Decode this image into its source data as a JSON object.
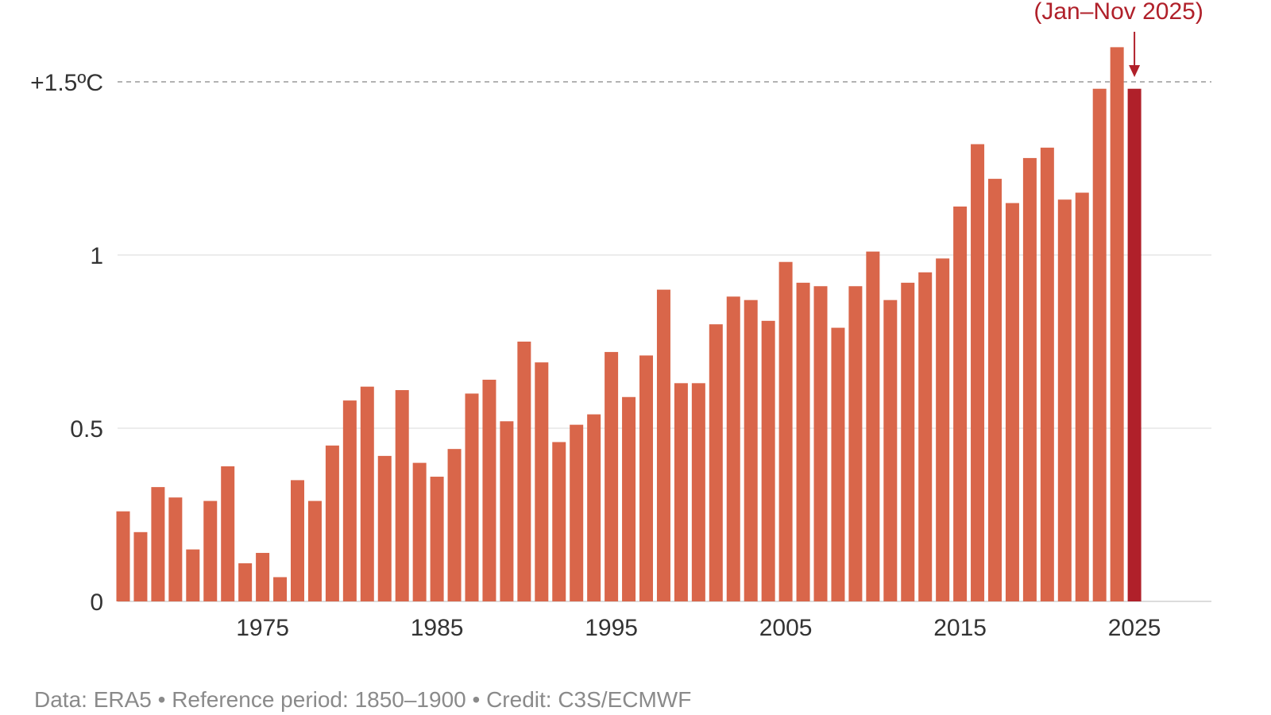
{
  "chart_data": {
    "type": "bar",
    "title": "",
    "xlabel": "",
    "ylabel": "",
    "ylim": [
      0,
      1.6
    ],
    "grid": true,
    "x": [
      1967,
      1968,
      1969,
      1970,
      1971,
      1972,
      1973,
      1974,
      1975,
      1976,
      1977,
      1978,
      1979,
      1980,
      1981,
      1982,
      1983,
      1984,
      1985,
      1986,
      1987,
      1988,
      1989,
      1990,
      1991,
      1992,
      1993,
      1994,
      1995,
      1996,
      1997,
      1998,
      1999,
      2000,
      2001,
      2002,
      2003,
      2004,
      2005,
      2006,
      2007,
      2008,
      2009,
      2010,
      2011,
      2012,
      2013,
      2014,
      2015,
      2016,
      2017,
      2018,
      2019,
      2020,
      2021,
      2022,
      2023,
      2024,
      2025
    ],
    "values": [
      0.26,
      0.2,
      0.33,
      0.3,
      0.15,
      0.29,
      0.39,
      0.11,
      0.14,
      0.07,
      0.35,
      0.29,
      0.45,
      0.58,
      0.62,
      0.42,
      0.61,
      0.4,
      0.36,
      0.44,
      0.6,
      0.64,
      0.52,
      0.75,
      0.69,
      0.46,
      0.51,
      0.54,
      0.72,
      0.59,
      0.71,
      0.9,
      0.63,
      0.63,
      0.8,
      0.88,
      0.87,
      0.81,
      0.98,
      0.92,
      0.91,
      0.79,
      0.91,
      1.01,
      0.87,
      0.92,
      0.95,
      0.99,
      1.14,
      1.32,
      1.22,
      1.15,
      1.28,
      1.31,
      1.16,
      1.18,
      1.48,
      1.6,
      1.48
    ],
    "highlight_last": true,
    "bar_color": "#d9664a",
    "highlight_color": "#b0202a",
    "y_ticks": [
      {
        "value": 0,
        "label": "0"
      },
      {
        "value": 0.5,
        "label": "0.5"
      },
      {
        "value": 1,
        "label": "1"
      },
      {
        "value": 1.5,
        "label": "+1.5ºC"
      }
    ],
    "x_ticks": [
      {
        "value": 1975,
        "label": "1975"
      },
      {
        "value": 1985,
        "label": "1985"
      },
      {
        "value": 1995,
        "label": "1995"
      },
      {
        "value": 2005,
        "label": "2005"
      },
      {
        "value": 2015,
        "label": "2015"
      },
      {
        "value": 2025,
        "label": "2025"
      }
    ],
    "threshold": {
      "value": 1.5
    },
    "annotation": {
      "text": "(Jan–Nov 2025)",
      "year": 2025
    }
  },
  "caption": "Data: ERA5 • Reference period: 1850–1900 • Credit: C3S/ECMWF"
}
